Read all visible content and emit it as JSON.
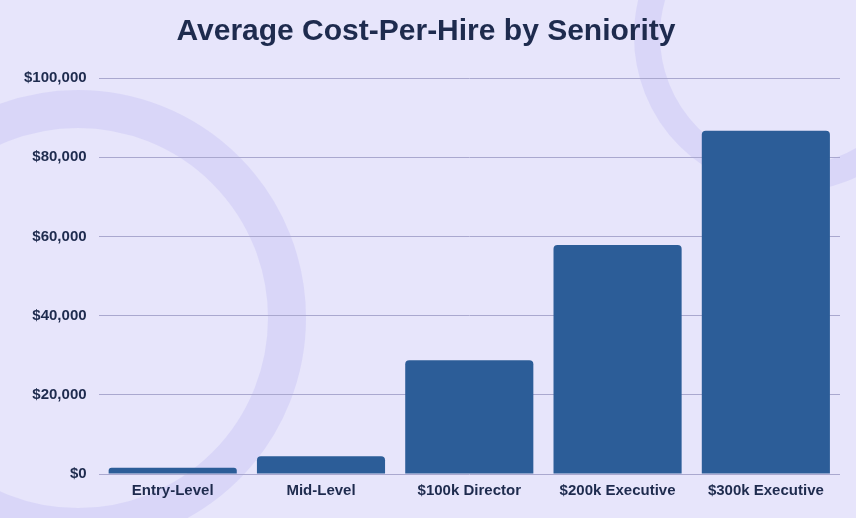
{
  "chart_data": {
    "type": "bar",
    "title": "Average Cost-Per-Hire by Seniority",
    "categories": [
      "Entry-Level",
      "Mid-Level",
      "$100k Director",
      "$200k Executive",
      "$300k Executive"
    ],
    "values": [
      1600,
      4500,
      28700,
      57800,
      86700
    ],
    "color": "#2c5d98",
    "ylim": [
      0,
      100000
    ],
    "yticks": [
      {
        "value": 0,
        "label": "$0"
      },
      {
        "value": 20000,
        "label": "$20,000"
      },
      {
        "value": 40000,
        "label": "$40,000"
      },
      {
        "value": 60000,
        "label": "$60,000"
      },
      {
        "value": 80000,
        "label": "$80,000"
      },
      {
        "value": 100000,
        "label": "$100,000"
      }
    ],
    "grid": true
  }
}
